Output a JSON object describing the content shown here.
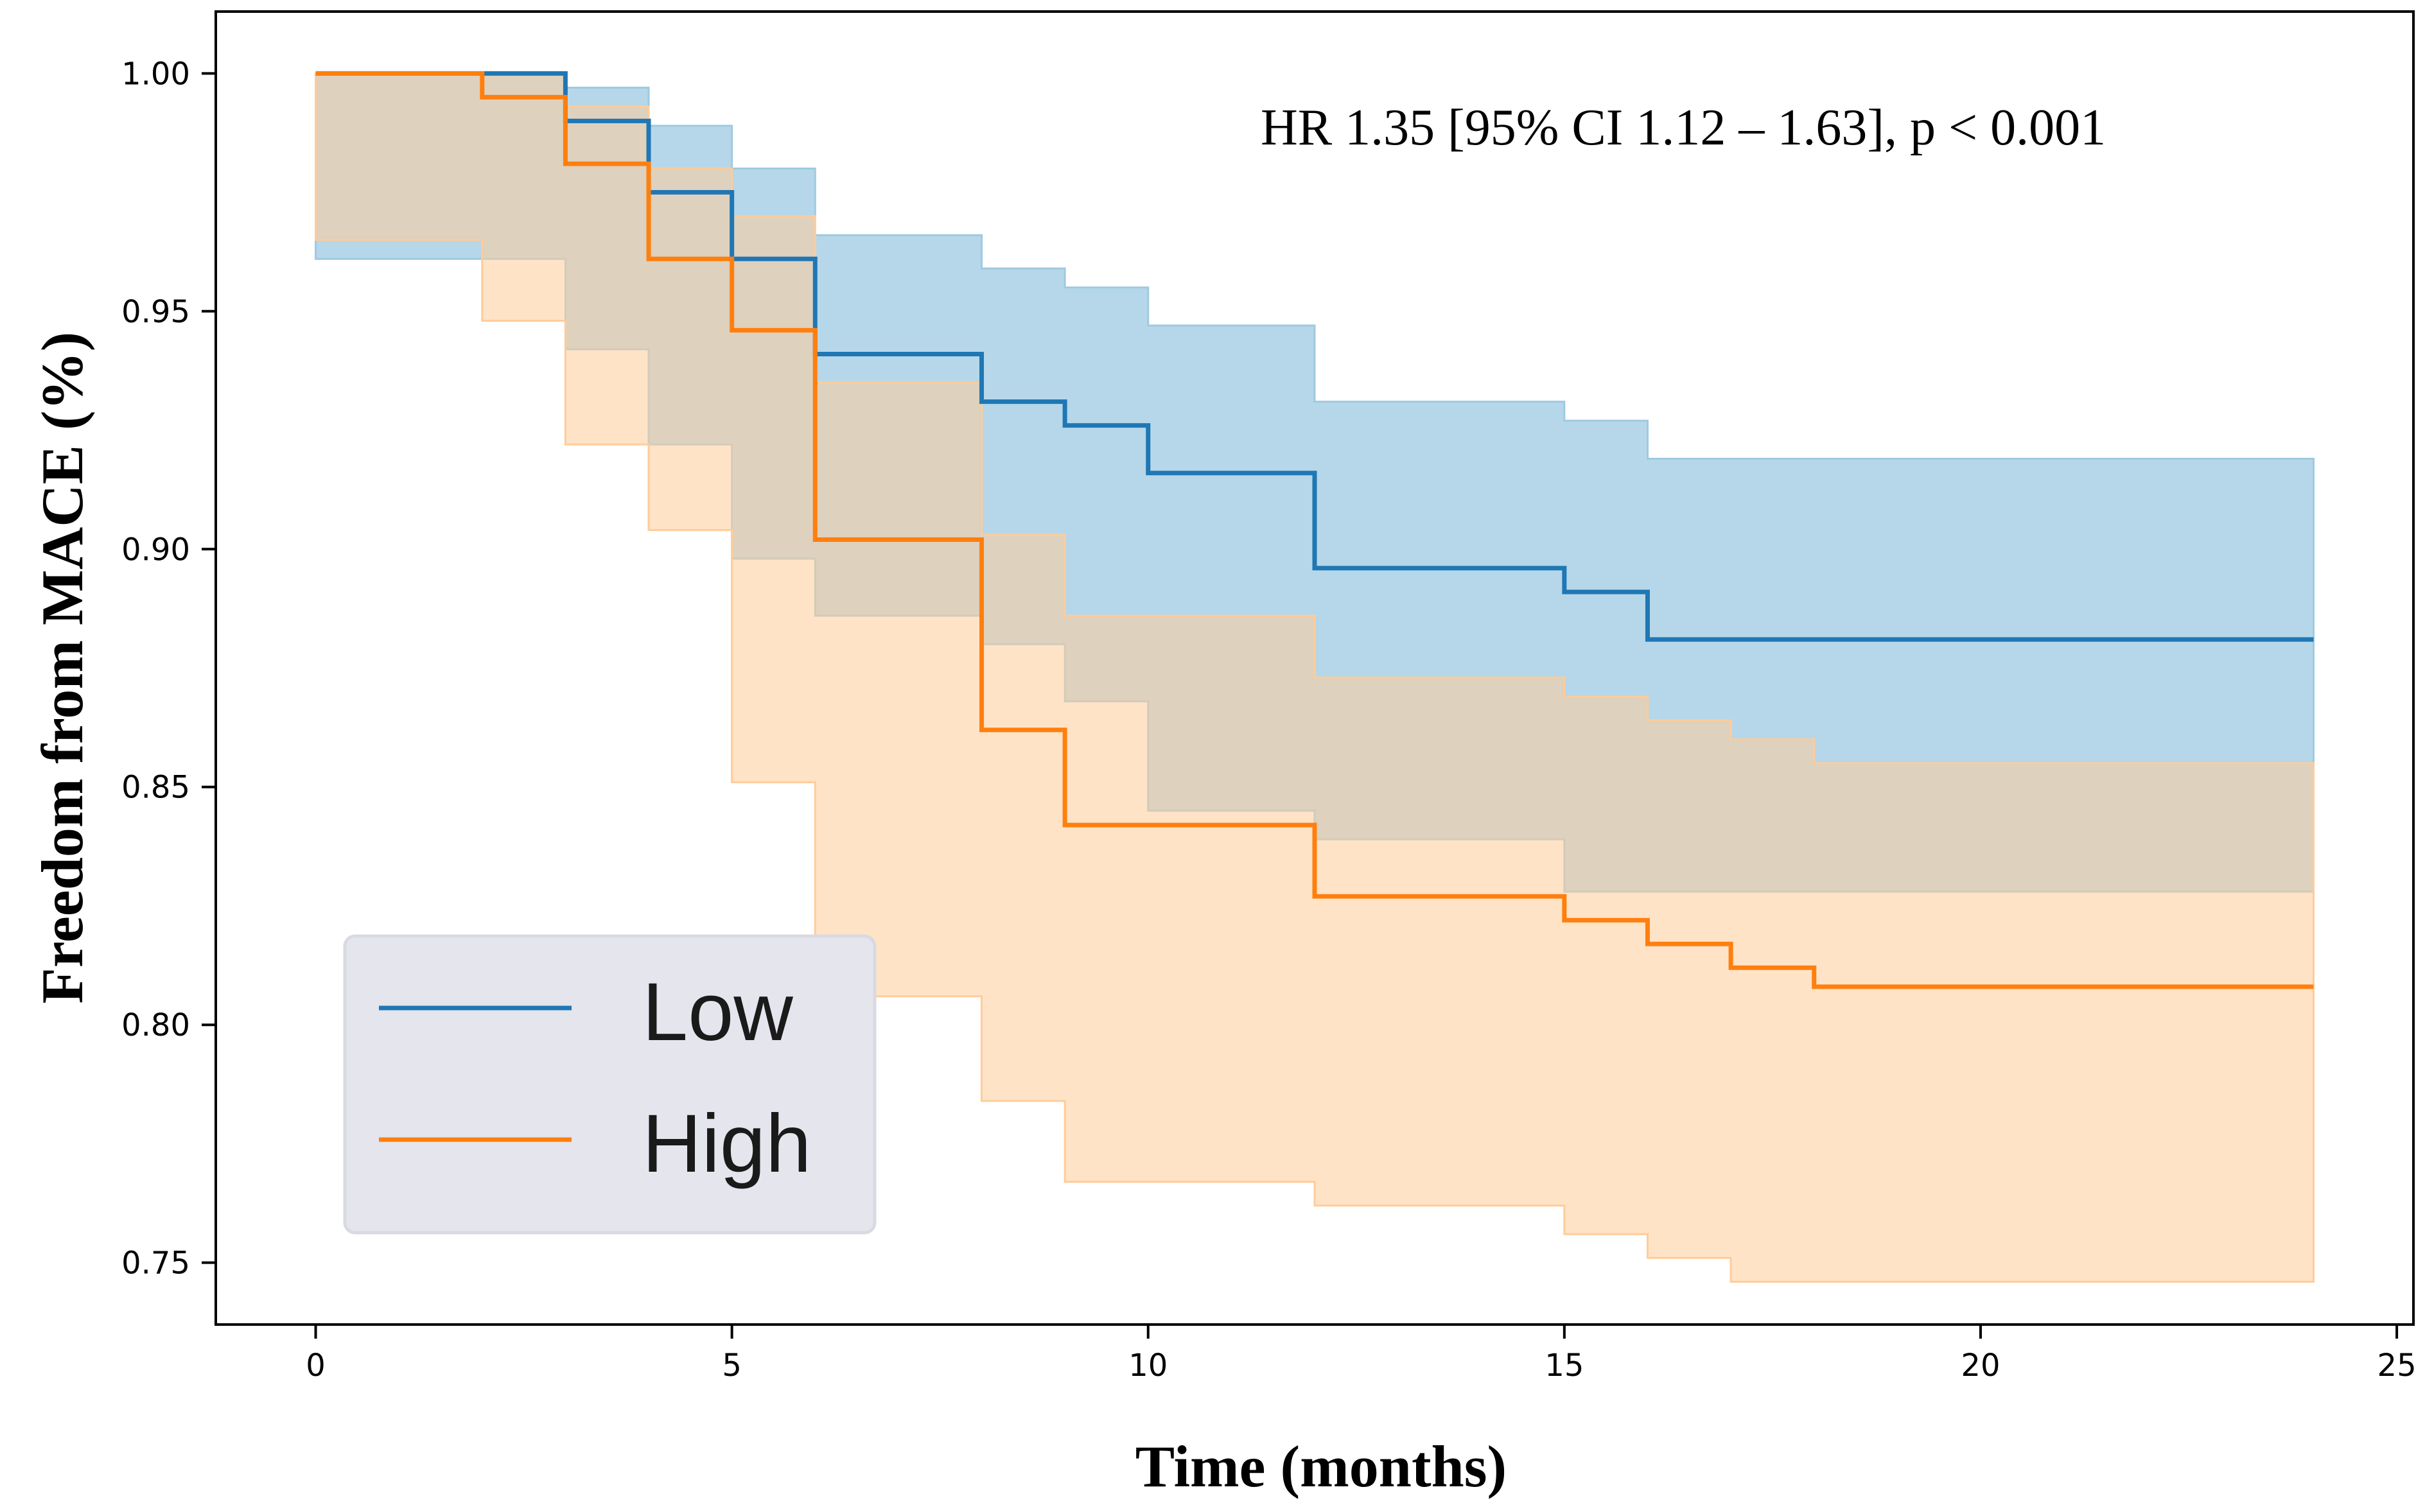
{
  "colors": {
    "low": "#1f77b4",
    "low_ci": "#9ecae1",
    "high": "#ff7f0e",
    "high_ci": "#ffcc99",
    "legend_bg": "#e5e5ee"
  },
  "chart_data": {
    "type": "line",
    "subtype": "kaplan-meier step with confidence bands",
    "title": "",
    "xlabel": "Time (months)",
    "ylabel": "Freedom from MACE (%)",
    "xlim": [
      -1.2,
      25.2
    ],
    "ylim": [
      0.737,
      1.013
    ],
    "xticks": [
      0,
      5,
      10,
      15,
      20,
      25
    ],
    "xtick_labels": [
      "0",
      "5",
      "10",
      "15",
      "20",
      "25"
    ],
    "yticks": [
      0.75,
      0.8,
      0.85,
      0.9,
      0.95,
      1.0
    ],
    "ytick_labels": [
      "0.75",
      "0.80",
      "0.85",
      "0.90",
      "0.95",
      "1.00"
    ],
    "annotation": "HR 1.35 [95% CI 1.12 – 1.63], p < 0.001",
    "legend": {
      "position": "bottom-left",
      "entries": [
        "Low",
        "High"
      ]
    },
    "series": [
      {
        "name": "Low",
        "x": [
          0,
          3,
          4,
          5,
          6,
          8,
          9,
          10,
          12,
          15,
          16,
          24
        ],
        "y": [
          1.0,
          0.99,
          0.975,
          0.961,
          0.941,
          0.931,
          0.926,
          0.916,
          0.896,
          0.891,
          0.881,
          0.881
        ],
        "ci_upper": [
          1.0,
          0.997,
          0.989,
          0.98,
          0.966,
          0.959,
          0.955,
          0.947,
          0.931,
          0.927,
          0.919,
          0.919
        ],
        "ci_lower": [
          1.0,
          0.961,
          0.942,
          0.922,
          0.898,
          0.886,
          0.88,
          0.868,
          0.845,
          0.839,
          0.828,
          0.828
        ]
      },
      {
        "name": "High",
        "x": [
          0,
          2,
          3,
          4,
          5,
          6,
          8,
          9,
          12,
          15,
          16,
          17,
          18,
          24
        ],
        "y": [
          1.0,
          0.995,
          0.981,
          0.961,
          0.946,
          0.902,
          0.862,
          0.842,
          0.827,
          0.822,
          0.817,
          0.812,
          0.808,
          0.808
        ],
        "ci_upper": [
          1.0,
          1.0,
          0.993,
          0.98,
          0.97,
          0.935,
          0.903,
          0.886,
          0.873,
          0.869,
          0.864,
          0.86,
          0.855,
          0.855
        ],
        "ci_lower": [
          1.0,
          0.965,
          0.948,
          0.922,
          0.904,
          0.851,
          0.806,
          0.784,
          0.767,
          0.762,
          0.756,
          0.751,
          0.746,
          0.746
        ]
      }
    ]
  }
}
